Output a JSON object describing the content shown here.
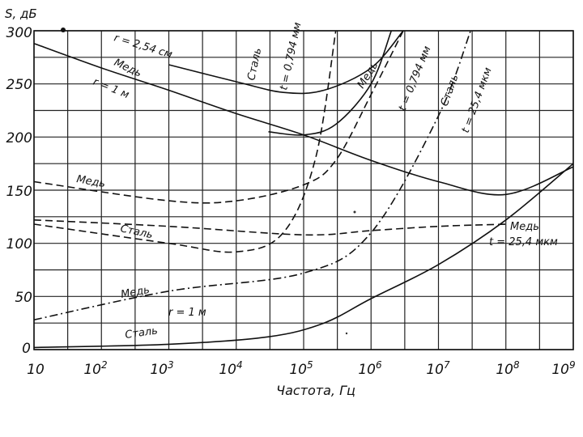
{
  "chart_data": {
    "type": "line",
    "title": "",
    "xlabel": "Частота, Гц",
    "ylabel": "S, дБ",
    "xscale": "log",
    "xlim": [
      10,
      1000000000
    ],
    "ylim": [
      0,
      300
    ],
    "grid": true,
    "x_tick_labels": [
      {
        "base": "10",
        "exp": ""
      },
      {
        "base": "10",
        "exp": "2"
      },
      {
        "base": "10",
        "exp": "3"
      },
      {
        "base": "10",
        "exp": "4"
      },
      {
        "base": "10",
        "exp": "5"
      },
      {
        "base": "10",
        "exp": "6"
      },
      {
        "base": "10",
        "exp": "7"
      },
      {
        "base": "10",
        "exp": "8"
      },
      {
        "base": "10",
        "exp": "9"
      }
    ],
    "y_ticks": [
      0,
      50,
      100,
      150,
      200,
      250,
      300
    ],
    "y_tick_labels": [
      "0",
      "50",
      "100",
      "150",
      "200",
      "250",
      "300"
    ],
    "series": [
      {
        "name": "Медь r=1 м (solid)",
        "style": "solid",
        "x": [
          10,
          100,
          1000,
          10000,
          100000,
          1000000,
          10000000,
          100000000,
          1000000000
        ],
        "y": [
          288,
          265,
          244,
          222,
          202,
          178,
          158,
          146,
          172
        ]
      },
      {
        "name": "Медь r=2,54 см (solid)",
        "style": "solid",
        "x": [
          1000,
          10000,
          50000,
          200000,
          1000000,
          3000000
        ],
        "y": [
          268,
          252,
          242,
          244,
          265,
          300
        ]
      },
      {
        "name": "Медь r=1 м (upper)",
        "style": "solid",
        "x": [
          30000,
          100000,
          300000,
          1000000,
          2000000
        ],
        "y": [
          205,
          202,
          212,
          250,
          300
        ]
      },
      {
        "name": "Медь t=0,794 мм (dashed)",
        "style": "dashed",
        "x": [
          10,
          1000,
          10000,
          100000,
          300000,
          1000000,
          3000000
        ],
        "y": [
          158,
          140,
          140,
          155,
          178,
          240,
          300
        ]
      },
      {
        "name": "Медь t=25,4 мкм (dashed)",
        "style": "dashed",
        "x": [
          10,
          1000,
          100000,
          1000000,
          10000000,
          100000000
        ],
        "y": [
          122,
          116,
          108,
          112,
          116,
          118
        ]
      },
      {
        "name": "Сталь t=0,794 мм (dashed)",
        "style": "dashed",
        "x": [
          10,
          1000,
          10000,
          50000,
          150000,
          300000
        ],
        "y": [
          118,
          100,
          92,
          110,
          180,
          300
        ]
      },
      {
        "name": "Сталь t=25,4 мкм (dash-dot)",
        "style": "dashdot",
        "x": [
          10,
          1000,
          100000,
          1000000,
          10000000,
          30000000
        ],
        "y": [
          28,
          55,
          72,
          110,
          220,
          300
        ]
      },
      {
        "name": "Сталь r=1 м (solid)",
        "style": "solid",
        "x": [
          10,
          1000,
          30000,
          200000,
          1000000,
          10000000,
          100000000,
          1000000000
        ],
        "y": [
          2,
          5,
          12,
          25,
          48,
          80,
          122,
          175
        ]
      }
    ],
    "annotations": [
      "r = 2,54 см",
      "Медь",
      "r = 1 м",
      "Сталь",
      "t = 0,794 мм",
      "Медь",
      "t = 0,794 мм",
      "Сталь",
      "t = 25,4 мкм",
      "Медь",
      "Сталь",
      "Медь",
      "r = 1 м",
      "Сталь",
      "Медь",
      "t = 25,4 мкм"
    ]
  }
}
